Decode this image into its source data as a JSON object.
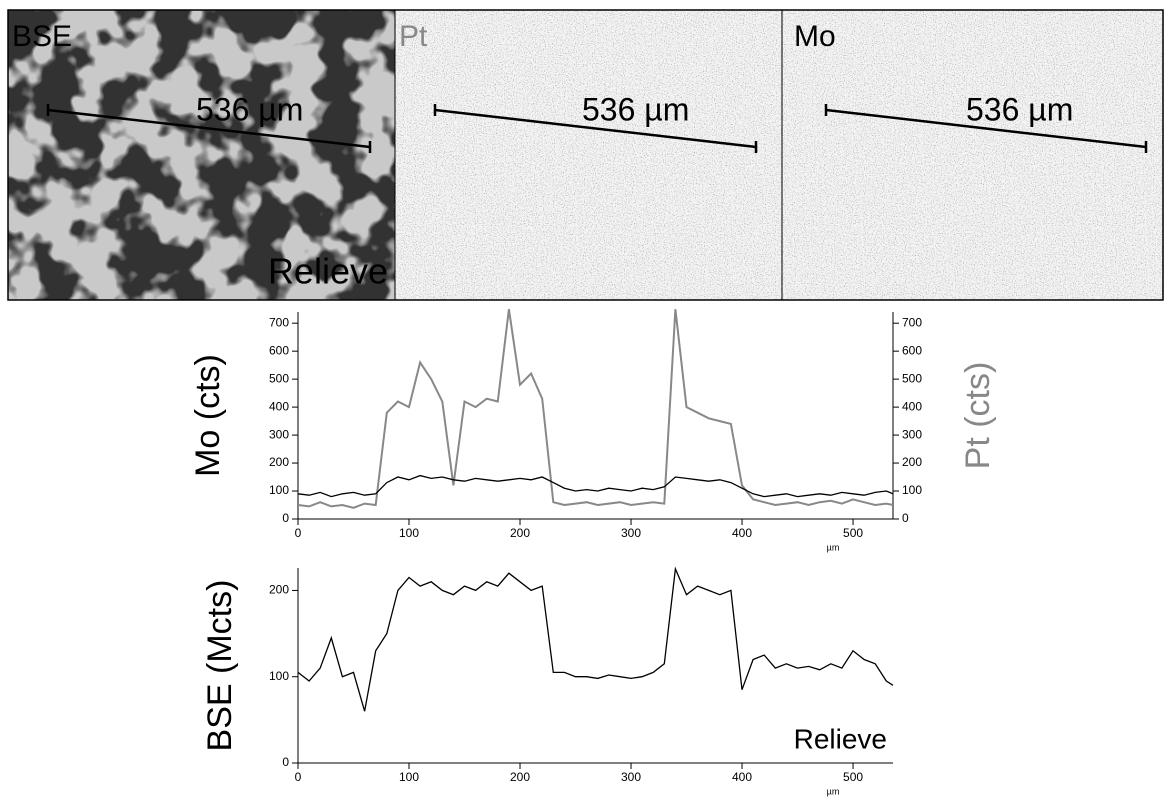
{
  "panels": [
    {
      "label": "BSE",
      "scale_bar": "536 µm",
      "annotation": "Relieve"
    },
    {
      "label": "Pt",
      "scale_bar": "536 µm"
    },
    {
      "label": "Mo",
      "scale_bar": "536 µm"
    }
  ],
  "chart_data": [
    {
      "type": "line",
      "ylabel": "Mo (cts)",
      "y2label": "Pt (cts)",
      "xlabel": "µm",
      "x": [
        0,
        10,
        20,
        30,
        40,
        50,
        60,
        70,
        80,
        90,
        100,
        110,
        120,
        130,
        140,
        150,
        160,
        170,
        180,
        190,
        200,
        210,
        220,
        230,
        240,
        250,
        260,
        270,
        280,
        290,
        300,
        310,
        320,
        330,
        340,
        350,
        360,
        370,
        380,
        390,
        400,
        410,
        420,
        430,
        440,
        450,
        460,
        470,
        480,
        490,
        500,
        510,
        520,
        530,
        536
      ],
      "xlim": [
        0,
        536
      ],
      "xticks": [
        0,
        100,
        200,
        300,
        400,
        500
      ],
      "ylim": [
        0,
        740
      ],
      "yticks": [
        0,
        100,
        200,
        300,
        400,
        500,
        600,
        700
      ],
      "y2lim": [
        0,
        740
      ],
      "y2ticks": [
        0,
        100,
        200,
        300,
        400,
        500,
        600,
        700
      ],
      "series": [
        {
          "color": "#888888",
          "axis": "y2",
          "values": [
            50,
            45,
            60,
            45,
            50,
            40,
            55,
            50,
            380,
            420,
            400,
            560,
            500,
            420,
            120,
            420,
            400,
            430,
            420,
            750,
            480,
            520,
            430,
            60,
            50,
            55,
            60,
            50,
            55,
            60,
            50,
            55,
            60,
            55,
            750,
            400,
            380,
            360,
            350,
            340,
            120,
            70,
            60,
            50,
            55,
            60,
            50,
            60,
            65,
            55,
            70,
            60,
            50,
            55,
            50
          ]
        },
        {
          "color": "#000000",
          "values": [
            90,
            85,
            95,
            80,
            90,
            95,
            85,
            90,
            130,
            150,
            140,
            155,
            145,
            150,
            140,
            135,
            145,
            140,
            135,
            140,
            145,
            140,
            150,
            130,
            110,
            100,
            105,
            100,
            110,
            105,
            100,
            110,
            105,
            115,
            150,
            145,
            140,
            135,
            140,
            130,
            110,
            90,
            80,
            85,
            90,
            80,
            85,
            90,
            85,
            95,
            90,
            85,
            95,
            100,
            90
          ]
        }
      ]
    },
    {
      "type": "line",
      "ylabel": "BSE (Mcts)",
      "xlabel": "µm",
      "annotation": "Relieve",
      "x": [
        0,
        10,
        20,
        30,
        40,
        50,
        60,
        70,
        80,
        90,
        100,
        110,
        120,
        130,
        140,
        150,
        160,
        170,
        180,
        190,
        200,
        210,
        220,
        230,
        240,
        250,
        260,
        270,
        280,
        290,
        300,
        310,
        320,
        330,
        340,
        350,
        360,
        370,
        380,
        390,
        400,
        410,
        420,
        430,
        440,
        450,
        460,
        470,
        480,
        490,
        500,
        510,
        520,
        530,
        536
      ],
      "xlim": [
        0,
        536
      ],
      "xticks": [
        0,
        100,
        200,
        300,
        400,
        500
      ],
      "ylim": [
        0,
        226
      ],
      "yticks": [
        0,
        100,
        200
      ],
      "series": [
        {
          "color": "#000000",
          "values": [
            105,
            95,
            110,
            145,
            100,
            105,
            60,
            130,
            150,
            200,
            215,
            205,
            210,
            200,
            195,
            205,
            200,
            210,
            205,
            220,
            210,
            200,
            205,
            105,
            105,
            100,
            100,
            98,
            102,
            100,
            98,
            100,
            105,
            115,
            225,
            195,
            205,
            200,
            195,
            200,
            85,
            120,
            125,
            110,
            115,
            110,
            112,
            108,
            115,
            110,
            130,
            120,
            115,
            95,
            90
          ]
        }
      ]
    }
  ]
}
